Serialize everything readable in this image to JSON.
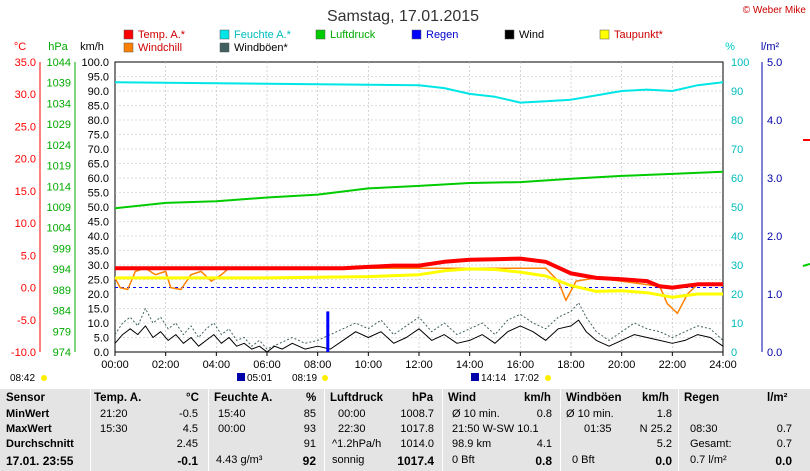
{
  "title": "Samstag, 17.01.2015",
  "credit": "© Weber Mike",
  "legend": [
    {
      "label": "Temp. A.*",
      "color": "#ff0000"
    },
    {
      "label": "Feuchte A.*",
      "color": "#00e6e6"
    },
    {
      "label": "Luftdruck",
      "color": "#00cc00"
    },
    {
      "label": "Regen",
      "color": "#0000ff"
    },
    {
      "label": "Wind",
      "color": "#000000"
    },
    {
      "label": "Taupunkt*",
      "color": "#ffff00"
    },
    {
      "label": "Windchill",
      "color": "#ff8000"
    },
    {
      "label": "Windböen*",
      "color": "#406060"
    }
  ],
  "axis_units": {
    "temp": "°C",
    "pressure": "hPa",
    "wind": "km/h",
    "humidity": "%",
    "rain": "l/m²"
  },
  "chart_data": {
    "type": "line",
    "title": "Samstag, 17.01.2015",
    "x_unit": "hour",
    "xlim": [
      0,
      24
    ],
    "x_ticks": [
      "00:00",
      "02:00",
      "04:00",
      "06:00",
      "08:00",
      "10:00",
      "12:00",
      "14:00",
      "16:00",
      "18:00",
      "20:00",
      "22:00",
      "24:00"
    ],
    "axes": {
      "temp": {
        "unit": "°C",
        "range": [
          -10,
          35
        ],
        "ticks": [
          "35.0",
          "30.0",
          "25.0",
          "20.0",
          "15.0",
          "10.0",
          "5.0",
          "0.0",
          "-5.0",
          "-10.0"
        ]
      },
      "pressure": {
        "unit": "hPa",
        "range": [
          974,
          1044
        ],
        "ticks": [
          "1044",
          "1039",
          "1034",
          "1029",
          "1024",
          "1019",
          "1014",
          "1009",
          "1004",
          "999",
          "994",
          "989",
          "984",
          "979",
          "974"
        ]
      },
      "wind": {
        "unit": "km/h",
        "range": [
          0,
          100
        ],
        "ticks": [
          "100.0",
          "95.0",
          "90.0",
          "85.0",
          "80.0",
          "75.0",
          "70.0",
          "65.0",
          "60.0",
          "55.0",
          "50.0",
          "45.0",
          "40.0",
          "35.0",
          "30.0",
          "25.0",
          "20.0",
          "15.0",
          "10.0",
          "5.0",
          "0.0"
        ]
      },
      "humidity": {
        "unit": "%",
        "range": [
          0,
          100
        ],
        "ticks": [
          "100",
          "90",
          "80",
          "70",
          "60",
          "50",
          "40",
          "30",
          "20",
          "10",
          "0"
        ]
      },
      "rain": {
        "unit": "l/m²",
        "range": [
          0,
          5
        ],
        "ticks": [
          "5.0",
          "4.0",
          "3.0",
          "2.0",
          "1.0",
          "0.0"
        ]
      }
    },
    "series": [
      {
        "name": "Temp. A.*",
        "axis": "temp",
        "color": "#ff0000",
        "width": 4,
        "points": [
          [
            0,
            3.0
          ],
          [
            6,
            3.0
          ],
          [
            9,
            3.0
          ],
          [
            10,
            3.2
          ],
          [
            11,
            3.4
          ],
          [
            12,
            3.4
          ],
          [
            13,
            4.0
          ],
          [
            14,
            4.3
          ],
          [
            15,
            4.4
          ],
          [
            16,
            4.5
          ],
          [
            17,
            4.0
          ],
          [
            18,
            2.2
          ],
          [
            19,
            1.5
          ],
          [
            20,
            1.3
          ],
          [
            21,
            1.0
          ],
          [
            21.5,
            0.2
          ],
          [
            22,
            0.0
          ],
          [
            23,
            0.5
          ],
          [
            24,
            0.5
          ]
        ]
      },
      {
        "name": "Feuchte A.*",
        "axis": "humidity",
        "color": "#00e6e6",
        "width": 2,
        "points": [
          [
            0,
            93
          ],
          [
            12,
            92
          ],
          [
            13,
            91
          ],
          [
            14,
            89
          ],
          [
            15,
            88
          ],
          [
            16,
            86
          ],
          [
            17,
            86.5
          ],
          [
            18,
            87
          ],
          [
            19,
            88.5
          ],
          [
            20,
            90
          ],
          [
            21,
            90.5
          ],
          [
            22,
            90
          ],
          [
            23,
            92
          ],
          [
            24,
            93
          ]
        ]
      },
      {
        "name": "Luftdruck",
        "axis": "pressure",
        "color": "#00cc00",
        "width": 2,
        "points": [
          [
            0,
            1008.7
          ],
          [
            2,
            1010.0
          ],
          [
            4,
            1010.4
          ],
          [
            6,
            1011.3
          ],
          [
            8,
            1012.0
          ],
          [
            10,
            1013.5
          ],
          [
            12,
            1014.1
          ],
          [
            14,
            1014.8
          ],
          [
            16,
            1015.0
          ],
          [
            18,
            1015.8
          ],
          [
            20,
            1016.5
          ],
          [
            22,
            1017.0
          ],
          [
            24,
            1017.5
          ]
        ]
      },
      {
        "name": "Taupunkt*",
        "axis": "temp",
        "color": "#ffff00",
        "width": 3,
        "points": [
          [
            0,
            1.5
          ],
          [
            6,
            1.5
          ],
          [
            10,
            1.7
          ],
          [
            12,
            2.0
          ],
          [
            13,
            2.6
          ],
          [
            14,
            2.9
          ],
          [
            15,
            2.8
          ],
          [
            16,
            2.4
          ],
          [
            17,
            1.8
          ],
          [
            18,
            0.3
          ],
          [
            19,
            -0.6
          ],
          [
            20,
            -0.5
          ],
          [
            21,
            -0.8
          ],
          [
            22,
            -1.5
          ],
          [
            23,
            -1.0
          ],
          [
            24,
            -1.0
          ]
        ]
      },
      {
        "name": "Windchill",
        "axis": "temp",
        "color": "#ff8000",
        "width": 1.5,
        "points": [
          [
            0,
            1.5
          ],
          [
            0.2,
            0.0
          ],
          [
            0.5,
            -0.3
          ],
          [
            0.8,
            2.5
          ],
          [
            1.2,
            3.0
          ],
          [
            1.6,
            2.0
          ],
          [
            2.0,
            2.5
          ],
          [
            2.2,
            0.0
          ],
          [
            2.6,
            -0.3
          ],
          [
            3.0,
            2.0
          ],
          [
            3.4,
            2.5
          ],
          [
            3.8,
            1.0
          ],
          [
            4.2,
            2.0
          ],
          [
            4.5,
            3.0
          ],
          [
            6,
            3.0
          ],
          [
            17,
            3.0
          ],
          [
            17.5,
            1.0
          ],
          [
            17.8,
            -2.0
          ],
          [
            18.2,
            1.0
          ],
          [
            19,
            1.5
          ],
          [
            21.5,
            0.2
          ],
          [
            21.8,
            -2.5
          ],
          [
            22.2,
            -4.0
          ],
          [
            22.6,
            -1.0
          ],
          [
            23,
            0.5
          ],
          [
            24,
            0.5
          ]
        ]
      },
      {
        "name": "Wind",
        "axis": "wind",
        "color": "#000000",
        "width": 1,
        "points": [
          [
            0,
            3
          ],
          [
            0.3,
            6
          ],
          [
            0.6,
            8
          ],
          [
            0.9,
            6
          ],
          [
            1.2,
            9
          ],
          [
            1.5,
            5
          ],
          [
            1.8,
            7
          ],
          [
            2.1,
            4
          ],
          [
            2.4,
            6
          ],
          [
            2.7,
            3
          ],
          [
            3.0,
            5
          ],
          [
            3.3,
            2
          ],
          [
            3.6,
            4
          ],
          [
            3.9,
            6
          ],
          [
            4.2,
            3
          ],
          [
            4.5,
            5
          ],
          [
            4.8,
            2
          ],
          [
            5.1,
            3
          ],
          [
            5.4,
            1
          ],
          [
            5.7,
            2
          ],
          [
            6.0,
            0
          ],
          [
            6.3,
            2
          ],
          [
            6.6,
            1
          ],
          [
            7.0,
            3
          ],
          [
            7.5,
            1
          ],
          [
            8.0,
            2
          ],
          [
            8.5,
            1
          ],
          [
            9.0,
            4
          ],
          [
            9.5,
            7
          ],
          [
            10,
            5
          ],
          [
            10.5,
            7
          ],
          [
            11,
            3
          ],
          [
            11.5,
            5
          ],
          [
            12,
            8
          ],
          [
            12.5,
            4
          ],
          [
            13,
            6
          ],
          [
            13.5,
            3
          ],
          [
            14,
            4
          ],
          [
            14.5,
            6
          ],
          [
            15,
            3
          ],
          [
            15.5,
            7
          ],
          [
            16,
            9
          ],
          [
            16.5,
            7
          ],
          [
            17,
            4
          ],
          [
            17.5,
            8
          ],
          [
            18,
            9
          ],
          [
            18.3,
            11
          ],
          [
            18.6,
            7
          ],
          [
            19,
            4
          ],
          [
            19.5,
            2
          ],
          [
            20,
            4
          ],
          [
            20.5,
            6
          ],
          [
            21,
            5
          ],
          [
            21.5,
            4
          ],
          [
            22,
            3
          ],
          [
            22.5,
            4
          ],
          [
            23,
            6
          ],
          [
            23.5,
            5
          ],
          [
            24,
            2
          ]
        ]
      },
      {
        "name": "Windböen*",
        "axis": "wind",
        "color": "#406060",
        "width": 1,
        "dash": "2,2",
        "points": [
          [
            0,
            6
          ],
          [
            0.3,
            10
          ],
          [
            0.6,
            12
          ],
          [
            0.9,
            9
          ],
          [
            1.2,
            15
          ],
          [
            1.5,
            10
          ],
          [
            1.8,
            12
          ],
          [
            2.1,
            8
          ],
          [
            2.4,
            10
          ],
          [
            2.7,
            6
          ],
          [
            3.0,
            9
          ],
          [
            3.3,
            5
          ],
          [
            3.6,
            8
          ],
          [
            3.9,
            10
          ],
          [
            4.2,
            6
          ],
          [
            4.5,
            8
          ],
          [
            4.8,
            4
          ],
          [
            5.1,
            5
          ],
          [
            5.4,
            2
          ],
          [
            5.7,
            4
          ],
          [
            6.0,
            1
          ],
          [
            6.5,
            3
          ],
          [
            7.0,
            5
          ],
          [
            7.5,
            3
          ],
          [
            8.0,
            4
          ],
          [
            9.0,
            8
          ],
          [
            9.5,
            10
          ],
          [
            10,
            8
          ],
          [
            10.5,
            11
          ],
          [
            11,
            6
          ],
          [
            11.5,
            9
          ],
          [
            12,
            12
          ],
          [
            12.5,
            7
          ],
          [
            13,
            10
          ],
          [
            13.5,
            6
          ],
          [
            14,
            8
          ],
          [
            14.5,
            10
          ],
          [
            15,
            6
          ],
          [
            15.5,
            11
          ],
          [
            16,
            13
          ],
          [
            16.5,
            10
          ],
          [
            17,
            8
          ],
          [
            17.5,
            12
          ],
          [
            18,
            14
          ],
          [
            18.3,
            17
          ],
          [
            18.6,
            12
          ],
          [
            19,
            7
          ],
          [
            19.5,
            4
          ],
          [
            20,
            7
          ],
          [
            20.5,
            10
          ],
          [
            21,
            8
          ],
          [
            21.5,
            7
          ],
          [
            22,
            5
          ],
          [
            22.5,
            7
          ],
          [
            23,
            9
          ],
          [
            23.5,
            8
          ],
          [
            24,
            4
          ]
        ]
      },
      {
        "name": "Regen",
        "axis": "rain",
        "color": "#0000ff",
        "bars": [
          [
            8.4,
            0.7
          ]
        ]
      }
    ],
    "reference_line": {
      "axis": "temp",
      "value": 0,
      "color": "#0000ff"
    },
    "grid": true
  },
  "sun_times": {
    "sunrise": "08:42",
    "noon_marker": "05:01",
    "marker_1": "08:19",
    "marker_2": "14:14",
    "sunset": "17:02"
  },
  "table": {
    "headers": [
      "Sensor",
      "Temp. A.",
      "°C",
      "Feuchte A.",
      "%",
      "Luftdruck",
      "hPa",
      "Wind",
      "km/h",
      "Windböen",
      "km/h",
      "Regen",
      "l/m²"
    ],
    "rows": [
      {
        "label": "MinWert",
        "temp_time": "21:20",
        "temp": "-0.5",
        "hum_time": "15:40",
        "hum": "85",
        "press_time": "00:00",
        "press": "1008.7",
        "wind_label": "Ø 10 min.",
        "wind": "0.8",
        "gust_label": "Ø 10 min.",
        "gust": "1.8",
        "rain_label": "",
        "rain": ""
      },
      {
        "label": "MaxWert",
        "temp_time": "15:30",
        "temp": "4.5",
        "hum_time": "00:00",
        "hum": "93",
        "press_time": "22:30",
        "press": "1017.8",
        "wind_label": "21:50   W-SW 10.1",
        "wind": "",
        "gust_label": "01:35",
        "gust": "N 25.2",
        "rain_label": "08:30",
        "rain": "0.7"
      },
      {
        "label": "Durchschnitt",
        "temp_time": "",
        "temp": "2.45",
        "hum_time": "",
        "hum": "91",
        "press_time": "^1.2hPa/h",
        "press": "1014.0",
        "wind_label": "98.9 km",
        "wind": "4.1",
        "gust_label": "",
        "gust": "5.2",
        "rain_label": "Gesamt:",
        "rain": "0.7"
      },
      {
        "label": "17.01. 23:55",
        "temp_time": "",
        "temp": "-0.1",
        "hum_time": "4.43 g/m³",
        "hum": "92",
        "press_time": "sonnig",
        "press": "1017.4",
        "wind_label": "0 Bft",
        "wind": "0.8",
        "gust_label": "0 Bft",
        "gust": "0.0",
        "rain_label": "0.7 l/m²",
        "rain": "0.0"
      }
    ]
  }
}
